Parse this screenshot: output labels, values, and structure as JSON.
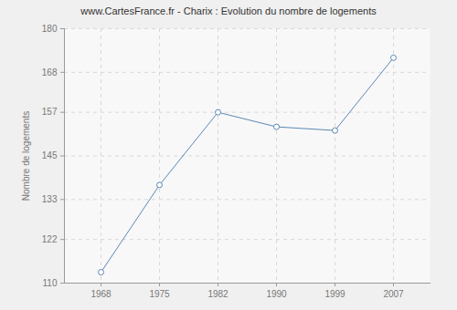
{
  "chart_data": {
    "type": "line",
    "title": "www.CartesFrance.fr - Charix : Evolution du nombre de logements",
    "y_label": "Nombre de logements",
    "categories": [
      "1968",
      "1975",
      "1982",
      "1990",
      "1999",
      "2007"
    ],
    "values": [
      113,
      137,
      157,
      153,
      152,
      172
    ],
    "color": "#5b87b5",
    "marker": "circle",
    "ylim": [
      110,
      180
    ],
    "yticks": [
      110,
      122,
      133,
      145,
      157,
      168,
      180
    ],
    "grid": true
  }
}
